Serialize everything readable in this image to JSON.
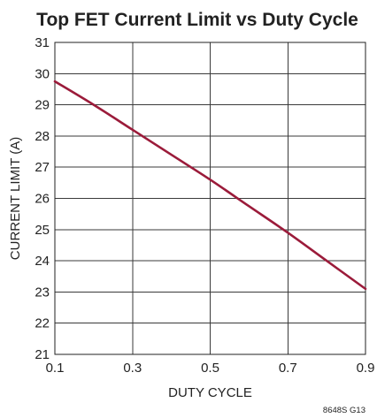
{
  "footnote": "8648S G13",
  "chart_data": {
    "type": "line",
    "title": "Top FET Current Limit vs Duty Cycle",
    "xlabel": "DUTY CYCLE",
    "ylabel": "CURRENT LIMIT (A)",
    "xlim": [
      0.1,
      0.9
    ],
    "ylim": [
      21,
      31
    ],
    "xticks": [
      0.1,
      0.3,
      0.5,
      0.7,
      0.9
    ],
    "xtick_labels": [
      "0.1",
      "0.3",
      "0.5",
      "0.7",
      "0.9"
    ],
    "yticks": [
      21,
      22,
      23,
      24,
      25,
      26,
      27,
      28,
      29,
      30,
      31
    ],
    "ytick_labels": [
      "21",
      "22",
      "23",
      "24",
      "25",
      "26",
      "27",
      "28",
      "29",
      "30",
      "31"
    ],
    "grid": true,
    "line_color": "#9b1b3a",
    "series": [
      {
        "x": [
          0.1,
          0.2,
          0.3,
          0.4,
          0.5,
          0.6,
          0.7,
          0.8,
          0.9
        ],
        "y": [
          29.75,
          29.0,
          28.2,
          27.4,
          26.6,
          25.75,
          24.9,
          24.0,
          23.1
        ]
      }
    ]
  }
}
